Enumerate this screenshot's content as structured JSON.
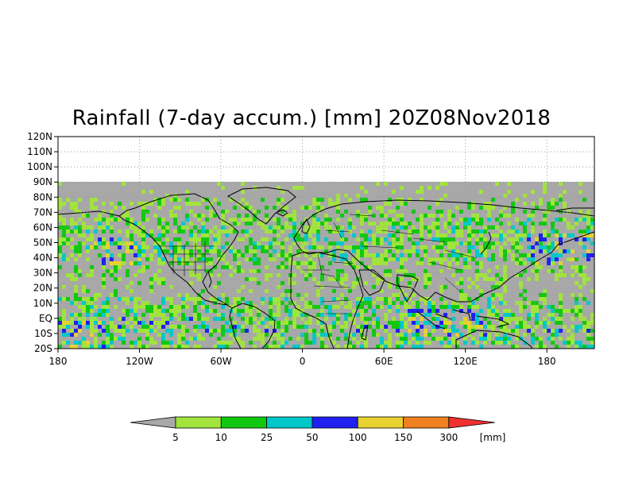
{
  "title": "Rainfall (7-day accum.) [mm] 20Z08Nov2018",
  "map": {
    "y_tick_labels": [
      "120N",
      "110N",
      "100N",
      "90N",
      "80N",
      "70N",
      "60N",
      "50N",
      "40N",
      "30N",
      "20N",
      "10N",
      "EQ",
      "10S",
      "20S"
    ],
    "x_tick_labels": [
      "180",
      "120W",
      "60W",
      "0",
      "60E",
      "120E",
      "180"
    ],
    "grid": true,
    "colors": {
      "no_data": "#a8a8a8",
      "background": "#ffffff",
      "coastline": "#000000"
    }
  },
  "legend": {
    "unit": "[mm]",
    "thresholds": [
      "5",
      "10",
      "25",
      "50",
      "100",
      "150",
      "300"
    ],
    "colors": [
      "#a8a8a8",
      "#a1e43c",
      "#11c811",
      "#00c8c8",
      "#2020f0",
      "#e8d230",
      "#f08020",
      "#f03030"
    ]
  }
}
